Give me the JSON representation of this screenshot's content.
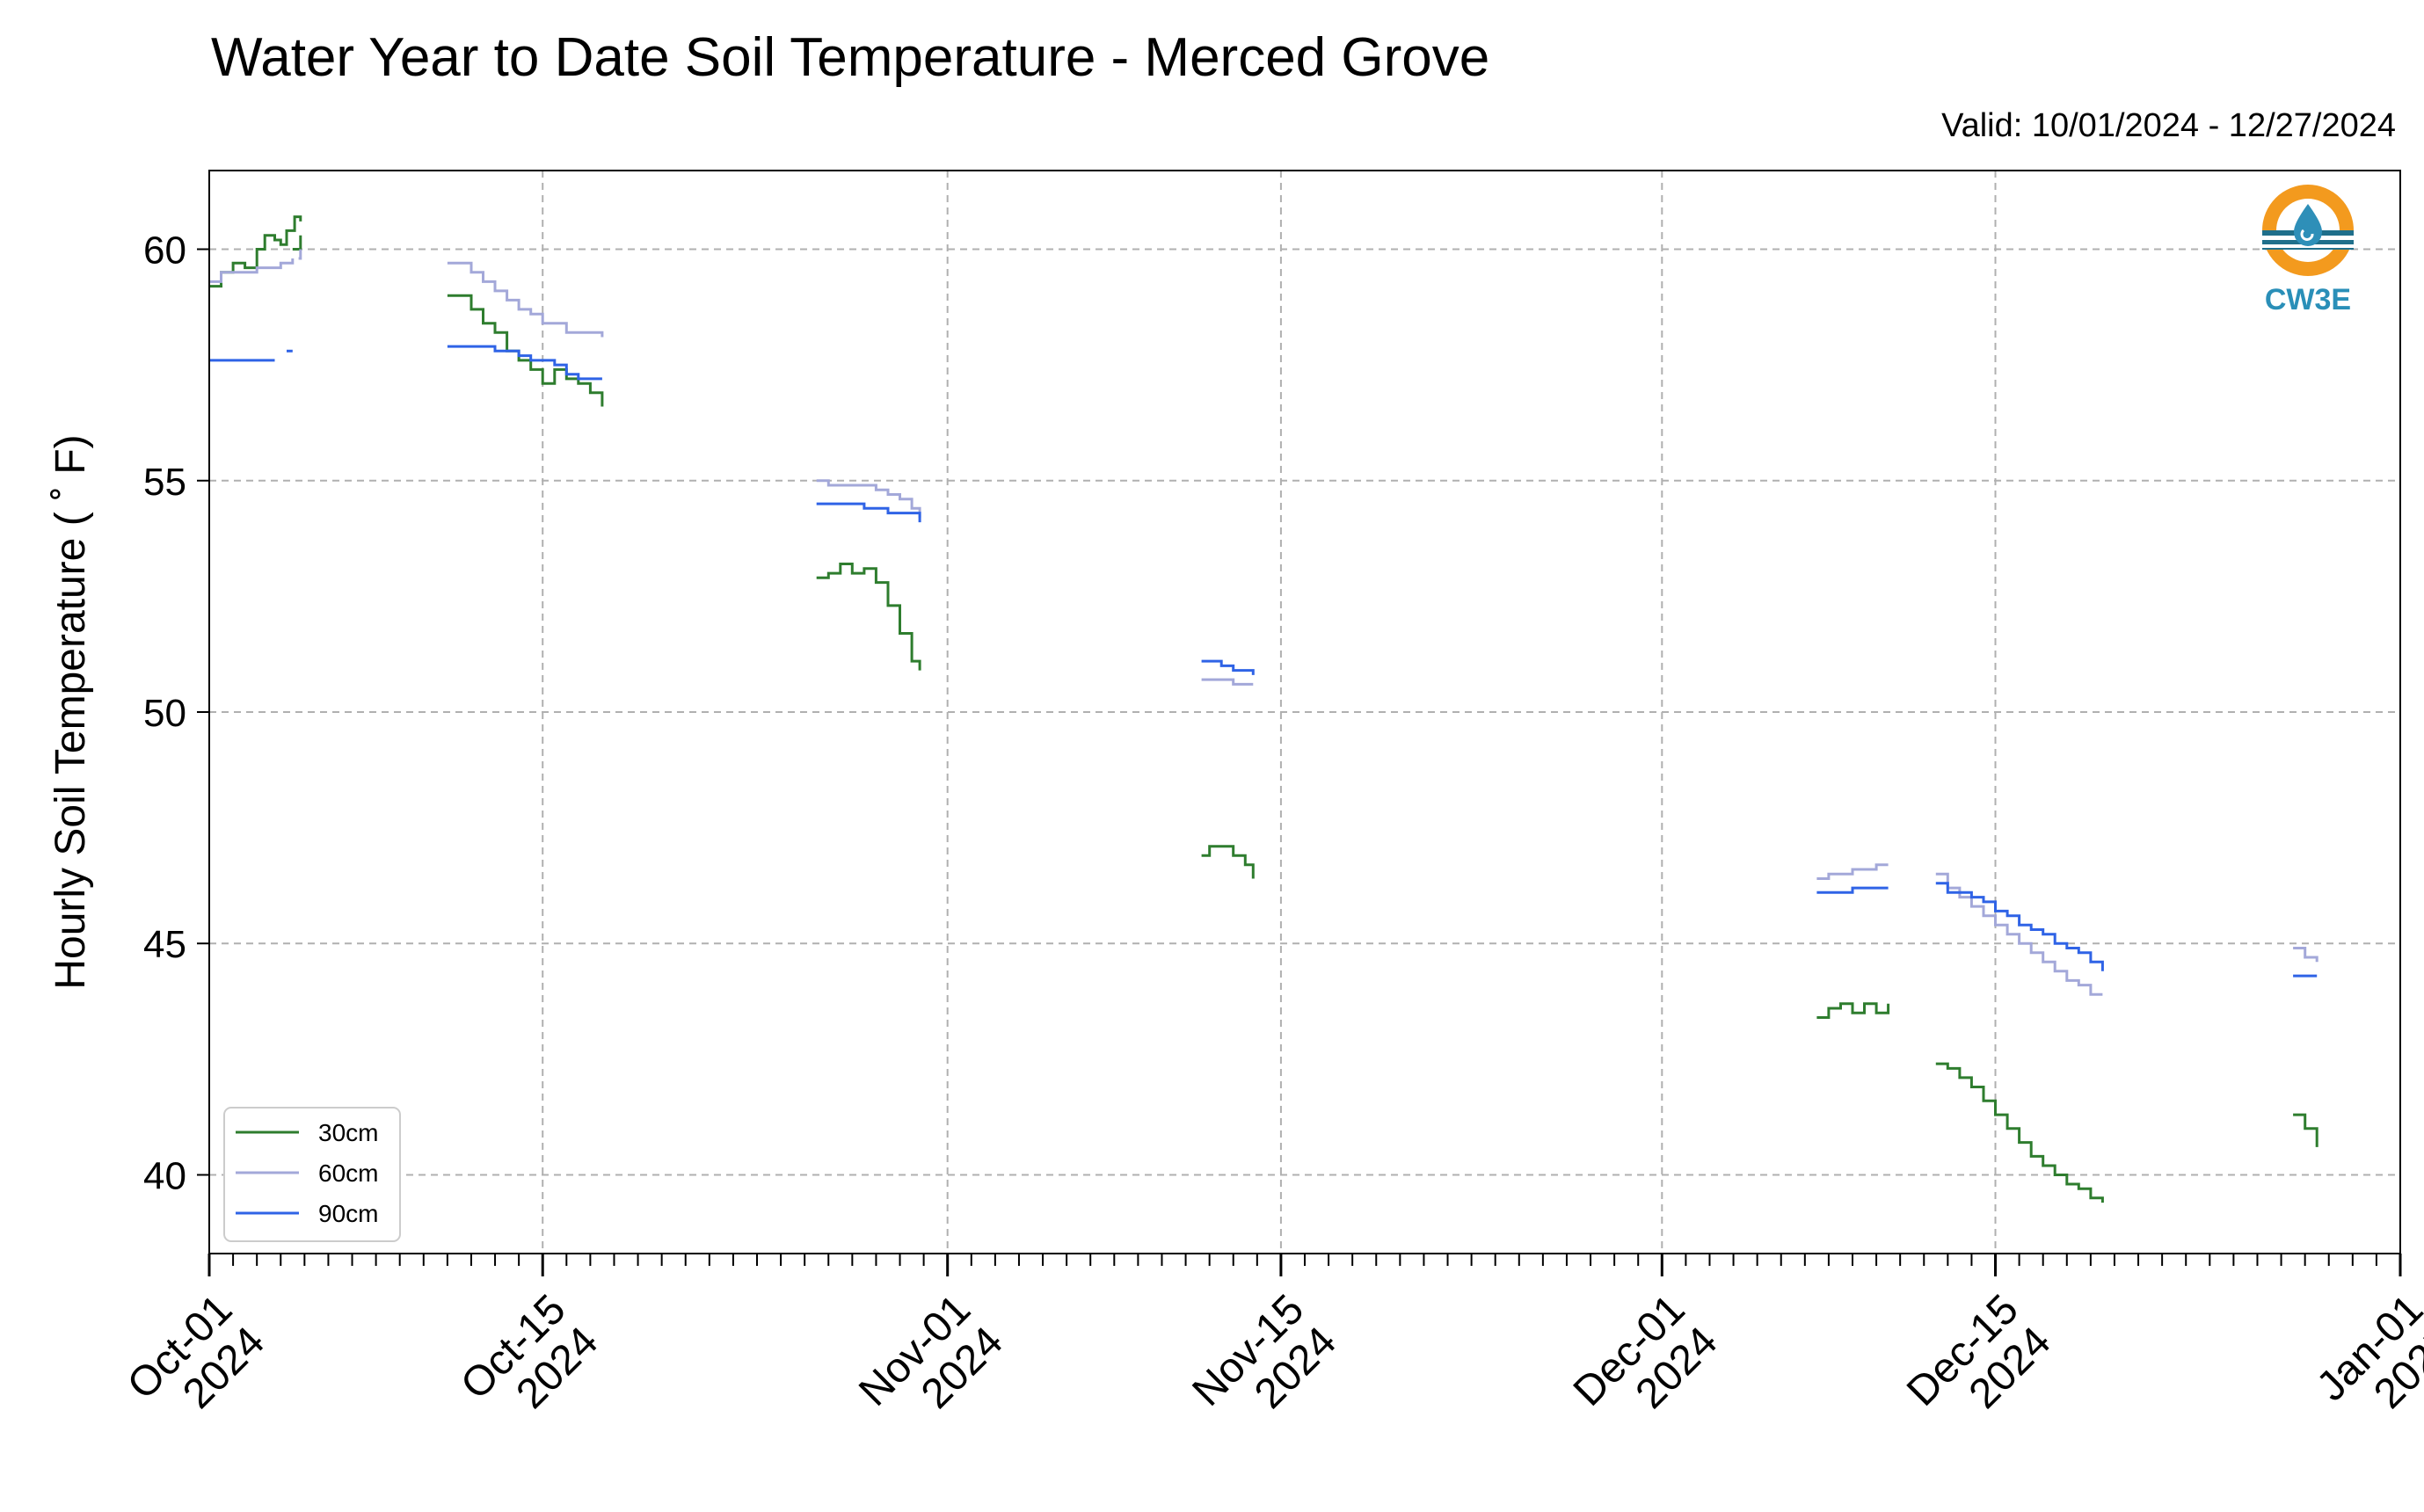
{
  "chart_data": {
    "type": "line",
    "title": "Water Year to Date Soil Temperature - Merced Grove",
    "subtitle": "Valid: 10/01/2024 - 12/27/2024",
    "ylabel": "Hourly Soil Temperature ( ˚ F)",
    "xlabel": "",
    "ylim": [
      38.3,
      61.7
    ],
    "xlim": [
      "2024-10-01",
      "2025-01-01"
    ],
    "yticks": [
      40,
      45,
      50,
      55,
      60
    ],
    "xticks": [
      {
        "date": "2024-10-01",
        "label": [
          "Oct-01",
          "2024"
        ]
      },
      {
        "date": "2024-10-15",
        "label": [
          "Oct-15",
          "2024"
        ]
      },
      {
        "date": "2024-11-01",
        "label": [
          "Nov-01",
          "2024"
        ]
      },
      {
        "date": "2024-11-15",
        "label": [
          "Nov-15",
          "2024"
        ]
      },
      {
        "date": "2024-12-01",
        "label": [
          "Dec-01",
          "2024"
        ]
      },
      {
        "date": "2024-12-15",
        "label": [
          "Dec-15",
          "2024"
        ]
      },
      {
        "date": "2025-01-01",
        "label": [
          "Jan-01",
          "2025"
        ]
      }
    ],
    "grid": true,
    "legend_position": "lower-left",
    "logo_text": "CW3E",
    "series": [
      {
        "name": "30cm",
        "color": "#2e7d2e",
        "segments": [
          [
            [
              "2024-10-01T00:00",
              59.2
            ],
            [
              "2024-10-01T12:00",
              59.5
            ],
            [
              "2024-10-02T00:00",
              59.7
            ],
            [
              "2024-10-02T12:00",
              59.6
            ],
            [
              "2024-10-03T00:00",
              60.0
            ],
            [
              "2024-10-03T08:00",
              60.3
            ],
            [
              "2024-10-03T18:00",
              60.2
            ],
            [
              "2024-10-04T00:00",
              60.1
            ],
            [
              "2024-10-04T06:00",
              60.4
            ],
            [
              "2024-10-04T14:00",
              60.7
            ],
            [
              "2024-10-04T20:00",
              60.6
            ]
          ],
          [
            [
              "2024-10-04T12:00",
              60.0
            ],
            [
              "2024-10-04T20:00",
              60.3
            ]
          ],
          [
            [
              "2024-10-11T00:00",
              59.0
            ],
            [
              "2024-10-11T12:00",
              59.0
            ],
            [
              "2024-10-12T00:00",
              58.7
            ],
            [
              "2024-10-12T12:00",
              58.4
            ],
            [
              "2024-10-13T00:00",
              58.2
            ],
            [
              "2024-10-13T12:00",
              57.8
            ],
            [
              "2024-10-14T00:00",
              57.6
            ],
            [
              "2024-10-14T12:00",
              57.4
            ],
            [
              "2024-10-15T00:00",
              57.1
            ],
            [
              "2024-10-15T12:00",
              57.4
            ],
            [
              "2024-10-16T00:00",
              57.2
            ],
            [
              "2024-10-16T12:00",
              57.1
            ],
            [
              "2024-10-17T00:00",
              56.9
            ],
            [
              "2024-10-17T12:00",
              56.6
            ]
          ],
          [
            [
              "2024-10-26T12:00",
              52.9
            ],
            [
              "2024-10-27T00:00",
              53.0
            ],
            [
              "2024-10-27T12:00",
              53.2
            ],
            [
              "2024-10-28T00:00",
              53.0
            ],
            [
              "2024-10-28T12:00",
              53.1
            ],
            [
              "2024-10-29T00:00",
              52.8
            ],
            [
              "2024-10-29T12:00",
              52.3
            ],
            [
              "2024-10-30T00:00",
              51.7
            ],
            [
              "2024-10-30T12:00",
              51.1
            ],
            [
              "2024-10-30T20:00",
              50.9
            ]
          ],
          [
            [
              "2024-11-11T16:00",
              46.9
            ],
            [
              "2024-11-12T00:00",
              47.1
            ],
            [
              "2024-11-12T12:00",
              47.1
            ],
            [
              "2024-11-13T00:00",
              46.9
            ],
            [
              "2024-11-13T12:00",
              46.7
            ],
            [
              "2024-11-13T20:00",
              46.4
            ]
          ],
          [
            [
              "2024-12-07T12:00",
              43.4
            ],
            [
              "2024-12-08T00:00",
              43.6
            ],
            [
              "2024-12-08T12:00",
              43.7
            ],
            [
              "2024-12-09T00:00",
              43.5
            ],
            [
              "2024-12-09T12:00",
              43.7
            ],
            [
              "2024-12-10T00:00",
              43.5
            ],
            [
              "2024-12-10T12:00",
              43.7
            ]
          ],
          [
            [
              "2024-12-12T12:00",
              42.4
            ],
            [
              "2024-12-13T00:00",
              42.3
            ],
            [
              "2024-12-13T12:00",
              42.1
            ],
            [
              "2024-12-14T00:00",
              41.9
            ],
            [
              "2024-12-14T12:00",
              41.6
            ],
            [
              "2024-12-15T00:00",
              41.3
            ],
            [
              "2024-12-15T12:00",
              41.0
            ],
            [
              "2024-12-16T00:00",
              40.7
            ],
            [
              "2024-12-16T12:00",
              40.4
            ],
            [
              "2024-12-17T00:00",
              40.2
            ],
            [
              "2024-12-17T12:00",
              40.0
            ],
            [
              "2024-12-18T00:00",
              39.8
            ],
            [
              "2024-12-18T12:00",
              39.7
            ],
            [
              "2024-12-19T00:00",
              39.5
            ],
            [
              "2024-12-19T12:00",
              39.4
            ]
          ],
          [
            [
              "2024-12-27T12:00",
              41.3
            ],
            [
              "2024-12-28T00:00",
              41.0
            ],
            [
              "2024-12-28T12:00",
              40.6
            ]
          ]
        ]
      },
      {
        "name": "60cm",
        "color": "#a3a8d9",
        "segments": [
          [
            [
              "2024-10-01T00:00",
              59.3
            ],
            [
              "2024-10-01T12:00",
              59.5
            ],
            [
              "2024-10-02T12:00",
              59.5
            ],
            [
              "2024-10-03T00:00",
              59.6
            ],
            [
              "2024-10-04T00:00",
              59.7
            ],
            [
              "2024-10-04T12:00",
              59.8
            ]
          ],
          [
            [
              "2024-10-04T18:00",
              59.8
            ],
            [
              "2024-10-04T20:00",
              60.0
            ]
          ],
          [
            [
              "2024-10-11T00:00",
              59.7
            ],
            [
              "2024-10-12T00:00",
              59.5
            ],
            [
              "2024-10-12T12:00",
              59.3
            ],
            [
              "2024-10-13T00:00",
              59.1
            ],
            [
              "2024-10-13T12:00",
              58.9
            ],
            [
              "2024-10-14T00:00",
              58.7
            ],
            [
              "2024-10-14T12:00",
              58.6
            ],
            [
              "2024-10-15T00:00",
              58.4
            ],
            [
              "2024-10-15T12:00",
              58.4
            ],
            [
              "2024-10-16T00:00",
              58.2
            ],
            [
              "2024-10-17T00:00",
              58.2
            ],
            [
              "2024-10-17T12:00",
              58.1
            ]
          ],
          [
            [
              "2024-10-26T12:00",
              55.0
            ],
            [
              "2024-10-27T00:00",
              54.9
            ],
            [
              "2024-10-28T00:00",
              54.9
            ],
            [
              "2024-10-29T00:00",
              54.8
            ],
            [
              "2024-10-29T12:00",
              54.7
            ],
            [
              "2024-10-30T00:00",
              54.6
            ],
            [
              "2024-10-30T12:00",
              54.4
            ],
            [
              "2024-10-30T20:00",
              54.2
            ]
          ],
          [
            [
              "2024-11-11T16:00",
              50.7
            ],
            [
              "2024-11-12T12:00",
              50.7
            ],
            [
              "2024-11-13T00:00",
              50.6
            ],
            [
              "2024-11-13T20:00",
              50.6
            ]
          ],
          [
            [
              "2024-12-07T12:00",
              46.4
            ],
            [
              "2024-12-08T00:00",
              46.5
            ],
            [
              "2024-12-09T00:00",
              46.6
            ],
            [
              "2024-12-10T00:00",
              46.7
            ],
            [
              "2024-12-10T12:00",
              46.7
            ]
          ],
          [
            [
              "2024-12-12T12:00",
              46.5
            ],
            [
              "2024-12-13T00:00",
              46.2
            ],
            [
              "2024-12-13T12:00",
              46.0
            ],
            [
              "2024-12-14T00:00",
              45.8
            ],
            [
              "2024-12-14T12:00",
              45.6
            ],
            [
              "2024-12-15T00:00",
              45.4
            ],
            [
              "2024-12-15T12:00",
              45.2
            ],
            [
              "2024-12-16T00:00",
              45.0
            ],
            [
              "2024-12-16T12:00",
              44.8
            ],
            [
              "2024-12-17T00:00",
              44.6
            ],
            [
              "2024-12-17T12:00",
              44.4
            ],
            [
              "2024-12-18T00:00",
              44.2
            ],
            [
              "2024-12-18T12:00",
              44.1
            ],
            [
              "2024-12-19T00:00",
              43.9
            ],
            [
              "2024-12-19T12:00",
              43.9
            ]
          ],
          [
            [
              "2024-12-27T12:00",
              44.9
            ],
            [
              "2024-12-28T00:00",
              44.7
            ],
            [
              "2024-12-28T12:00",
              44.6
            ]
          ]
        ]
      },
      {
        "name": "90cm",
        "color": "#2f63e6",
        "segments": [
          [
            [
              "2024-10-01T00:00",
              57.6
            ],
            [
              "2024-10-03T18:00",
              57.6
            ]
          ],
          [
            [
              "2024-10-04T06:00",
              57.8
            ],
            [
              "2024-10-04T12:00",
              57.8
            ]
          ],
          [
            [
              "2024-10-11T00:00",
              57.9
            ],
            [
              "2024-10-12T12:00",
              57.9
            ],
            [
              "2024-10-13T00:00",
              57.8
            ],
            [
              "2024-10-14T00:00",
              57.7
            ],
            [
              "2024-10-14T12:00",
              57.6
            ],
            [
              "2024-10-15T12:00",
              57.5
            ],
            [
              "2024-10-16T00:00",
              57.3
            ],
            [
              "2024-10-16T12:00",
              57.2
            ],
            [
              "2024-10-17T12:00",
              57.2
            ]
          ],
          [
            [
              "2024-10-26T12:00",
              54.5
            ],
            [
              "2024-10-28T00:00",
              54.5
            ],
            [
              "2024-10-28T12:00",
              54.4
            ],
            [
              "2024-10-29T12:00",
              54.3
            ],
            [
              "2024-10-30T12:00",
              54.3
            ],
            [
              "2024-10-30T20:00",
              54.1
            ]
          ],
          [
            [
              "2024-11-11T16:00",
              51.1
            ],
            [
              "2024-11-12T12:00",
              51.0
            ],
            [
              "2024-11-13T00:00",
              50.9
            ],
            [
              "2024-11-13T20:00",
              50.8
            ]
          ],
          [
            [
              "2024-12-07T12:00",
              46.1
            ],
            [
              "2024-12-08T12:00",
              46.1
            ],
            [
              "2024-12-09T00:00",
              46.2
            ],
            [
              "2024-12-10T12:00",
              46.2
            ]
          ],
          [
            [
              "2024-12-12T12:00",
              46.3
            ],
            [
              "2024-12-13T00:00",
              46.1
            ],
            [
              "2024-12-14T00:00",
              46.0
            ],
            [
              "2024-12-14T12:00",
              45.9
            ],
            [
              "2024-12-15T00:00",
              45.7
            ],
            [
              "2024-12-15T12:00",
              45.6
            ],
            [
              "2024-12-16T00:00",
              45.4
            ],
            [
              "2024-12-16T12:00",
              45.3
            ],
            [
              "2024-12-17T00:00",
              45.2
            ],
            [
              "2024-12-17T12:00",
              45.0
            ],
            [
              "2024-12-18T00:00",
              44.9
            ],
            [
              "2024-12-18T12:00",
              44.8
            ],
            [
              "2024-12-19T00:00",
              44.6
            ],
            [
              "2024-12-19T12:00",
              44.4
            ]
          ],
          [
            [
              "2024-12-27T12:00",
              44.3
            ],
            [
              "2024-12-28T12:00",
              44.3
            ]
          ]
        ]
      }
    ]
  }
}
